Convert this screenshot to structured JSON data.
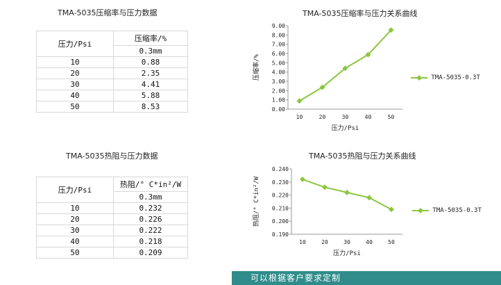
{
  "table1": {
    "title": "TMA-5035压缩率与压力数据",
    "col1_header": "压力/Psi",
    "col2_header": "压缩率/%",
    "sub_header": "0.3mm",
    "rows": [
      {
        "p": "10",
        "v": "0.88"
      },
      {
        "p": "20",
        "v": "2.35"
      },
      {
        "p": "30",
        "v": "4.41"
      },
      {
        "p": "40",
        "v": "5.88"
      },
      {
        "p": "50",
        "v": "8.53"
      }
    ]
  },
  "table2": {
    "title": "TMA-5035热阻与压力数据",
    "col1_header": "压力/Psi",
    "col2_header": "热阻/° C*in²/W",
    "sub_header": "0.3mm",
    "rows": [
      {
        "p": "10",
        "v": "0.232"
      },
      {
        "p": "20",
        "v": "0.226"
      },
      {
        "p": "30",
        "v": "0.222"
      },
      {
        "p": "40",
        "v": "0.218"
      },
      {
        "p": "50",
        "v": "0.209"
      }
    ]
  },
  "banner": {
    "text": "可以根据客户要求定制"
  },
  "chart_data": [
    {
      "type": "line",
      "title": "TMA-5035压缩率与压力关系曲线",
      "xlabel": "压力/Psi",
      "ylabel": "压缩率/%",
      "x": [
        10,
        20,
        30,
        40,
        50
      ],
      "series": [
        {
          "name": "TMA-5035-0.3T",
          "values": [
            0.88,
            2.35,
            4.41,
            5.88,
            8.53
          ]
        }
      ],
      "ylim": [
        0,
        9
      ],
      "yticks": [
        "0.00",
        "1.00",
        "2.00",
        "3.00",
        "4.00",
        "5.00",
        "6.00",
        "7.00",
        "8.00",
        "9.00"
      ],
      "xticks": [
        "10",
        "20",
        "30",
        "40",
        "50"
      ],
      "grid": false,
      "legend": "right",
      "color": "#8cc63f"
    },
    {
      "type": "line",
      "title": "TMA-5035热阻与压力关系曲线",
      "xlabel": "压力/Psi",
      "ylabel": "热阻/° C*in²/W",
      "x": [
        10,
        20,
        30,
        40,
        50
      ],
      "series": [
        {
          "name": "TMA-5035-0.3T",
          "values": [
            0.232,
            0.226,
            0.222,
            0.218,
            0.209
          ]
        }
      ],
      "ylim": [
        0.19,
        0.24
      ],
      "yticks": [
        "0.190",
        "0.200",
        "0.210",
        "0.220",
        "0.230",
        "0.240"
      ],
      "xticks": [
        "10",
        "20",
        "30",
        "40",
        "50"
      ],
      "grid": false,
      "legend": "right",
      "color": "#8cc63f"
    }
  ]
}
